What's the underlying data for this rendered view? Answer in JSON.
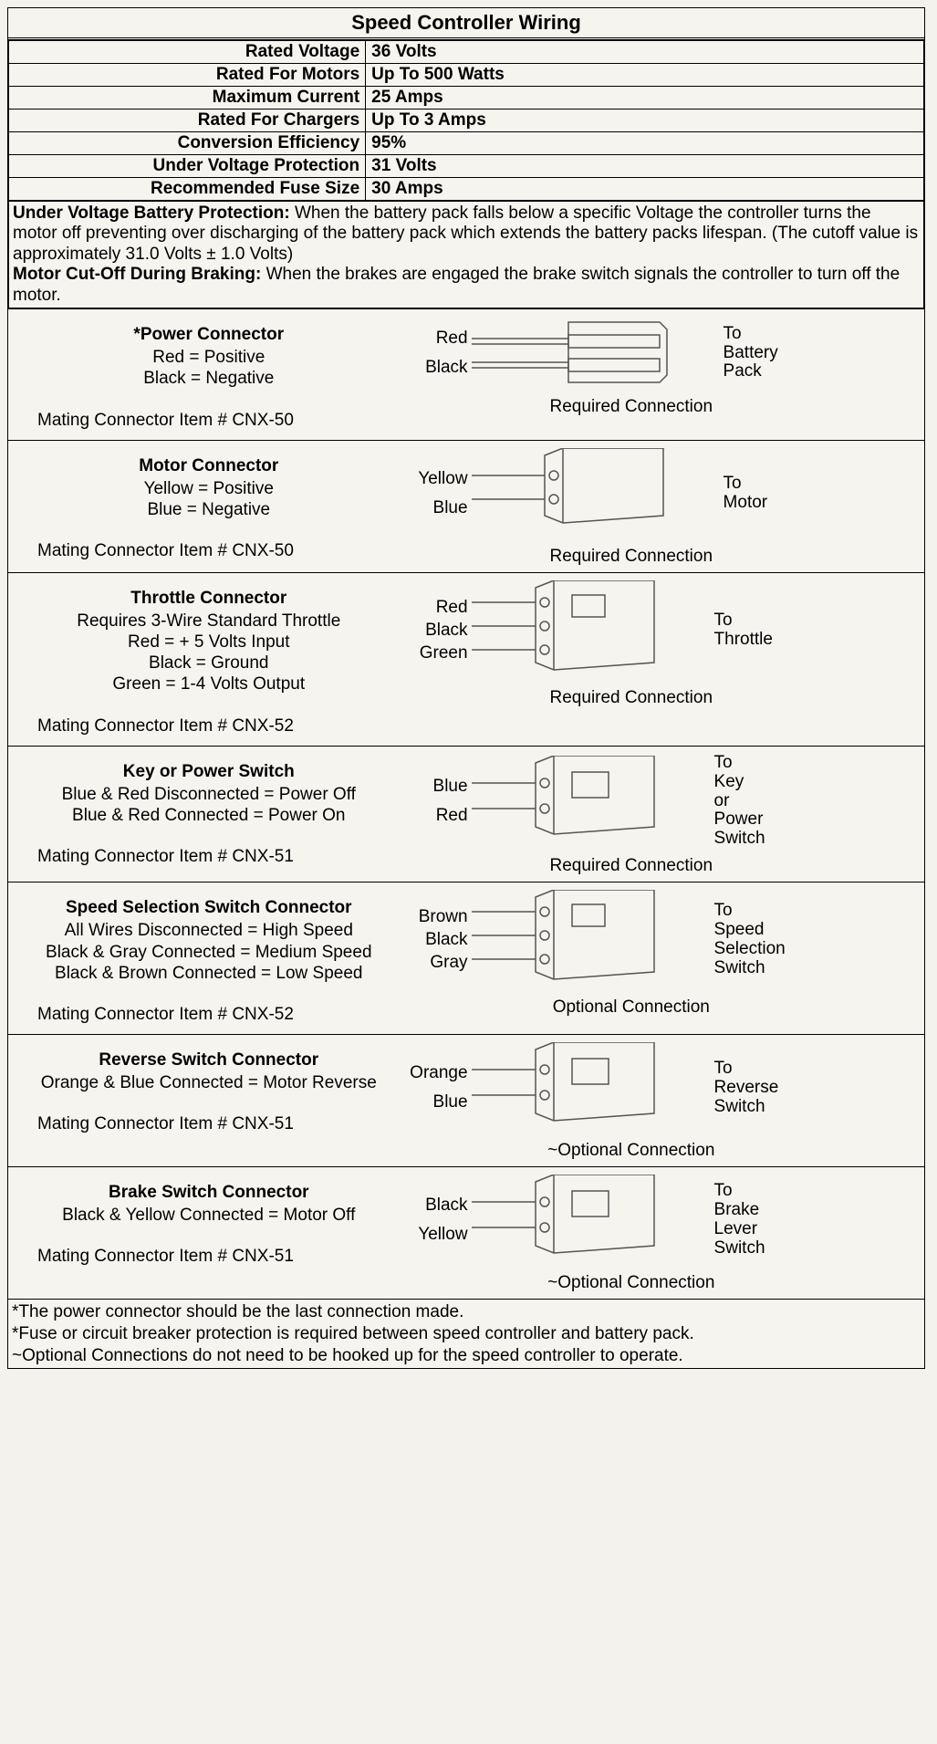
{
  "title": "Speed Controller Wiring",
  "specs": [
    {
      "k": "Rated Voltage",
      "v": "36 Volts"
    },
    {
      "k": "Rated For Motors",
      "v": "Up To 500 Watts"
    },
    {
      "k": "Maximum Current",
      "v": "25 Amps"
    },
    {
      "k": "Rated For Chargers",
      "v": "Up To 3 Amps"
    },
    {
      "k": "Conversion Efficiency",
      "v": "95%"
    },
    {
      "k": "Under Voltage Protection",
      "v": "31 Volts"
    },
    {
      "k": "Recommended Fuse Size",
      "v": "30 Amps"
    }
  ],
  "protection": {
    "p1_label": "Under Voltage Battery Protection:",
    "p1_text": " When the battery pack falls below a specific Voltage the controller turns the motor off preventing over discharging of the battery pack which extends the battery packs lifespan. (The cutoff value is approximately 31.0 Volts ± 1.0 Volts)",
    "p2_label": "Motor Cut-Off During Braking:",
    "p2_text": " When the brakes are engaged the brake switch signals the controller to turn off the motor."
  },
  "connectors": [
    {
      "title": "*Power Connector",
      "lines": [
        "Red = Positive",
        "Black = Negative"
      ],
      "mating": "Mating Connector Item # CNX-50",
      "wires": [
        "Red",
        "Black"
      ],
      "dest": "To Battery Pack",
      "note": "Required Connection",
      "svg": "power"
    },
    {
      "title": "Motor Connector",
      "lines": [
        "Yellow = Positive",
        "Blue = Negative"
      ],
      "mating": "Mating Connector Item # CNX-50",
      "wires": [
        "Yellow",
        "Blue"
      ],
      "dest": "To Motor",
      "note": "Required Connection",
      "svg": "motor"
    },
    {
      "title": "Throttle Connector",
      "lines": [
        "Requires 3-Wire Standard Throttle",
        "Red = + 5 Volts Input",
        "Black = Ground",
        "Green = 1-4 Volts Output"
      ],
      "mating": "Mating Connector Item # CNX-52",
      "wires": [
        "Red",
        "Black",
        "Green"
      ],
      "dest": "To Throttle",
      "note": "Required Connection",
      "svg": "three"
    },
    {
      "title": "Key or Power Switch",
      "lines": [
        "Blue & Red Disconnected = Power Off",
        "Blue & Red Connected = Power On"
      ],
      "mating": "Mating Connector Item # CNX-51",
      "wires": [
        "Blue",
        "Red"
      ],
      "dest": "To Key or Power Switch",
      "note": "Required Connection",
      "svg": "two"
    },
    {
      "title": "Speed Selection Switch Connector",
      "lines": [
        "All Wires Disconnected = High Speed",
        "Black & Gray Connected = Medium Speed",
        "Black & Brown Connected = Low Speed"
      ],
      "mating": "Mating Connector Item # CNX-52",
      "wires": [
        "Brown",
        "Black",
        "Gray"
      ],
      "dest": "To Speed Selection Switch",
      "note": "Optional Connection",
      "svg": "three"
    },
    {
      "title": "Reverse Switch Connector",
      "lines": [
        "Orange & Blue Connected = Motor Reverse"
      ],
      "mating": "Mating Connector Item # CNX-51",
      "wires": [
        "Orange",
        "Blue"
      ],
      "dest": "To Reverse Switch",
      "note": "~Optional Connection",
      "svg": "two"
    },
    {
      "title": "Brake Switch Connector",
      "lines": [
        "Black & Yellow Connected = Motor Off"
      ],
      "mating": "Mating Connector Item # CNX-51",
      "wires": [
        "Black",
        "Yellow"
      ],
      "dest": "To Brake Lever Switch",
      "note": "~Optional Connection",
      "svg": "two"
    }
  ],
  "footnotes": [
    "*The power connector should be the last connection made.",
    "*Fuse or circuit breaker protection is required between speed controller and battery pack.",
    "~Optional Connections do not need to be hooked up for the speed controller to operate."
  ],
  "colors": {
    "line": "#555555",
    "bg": "#f6f4ef"
  }
}
